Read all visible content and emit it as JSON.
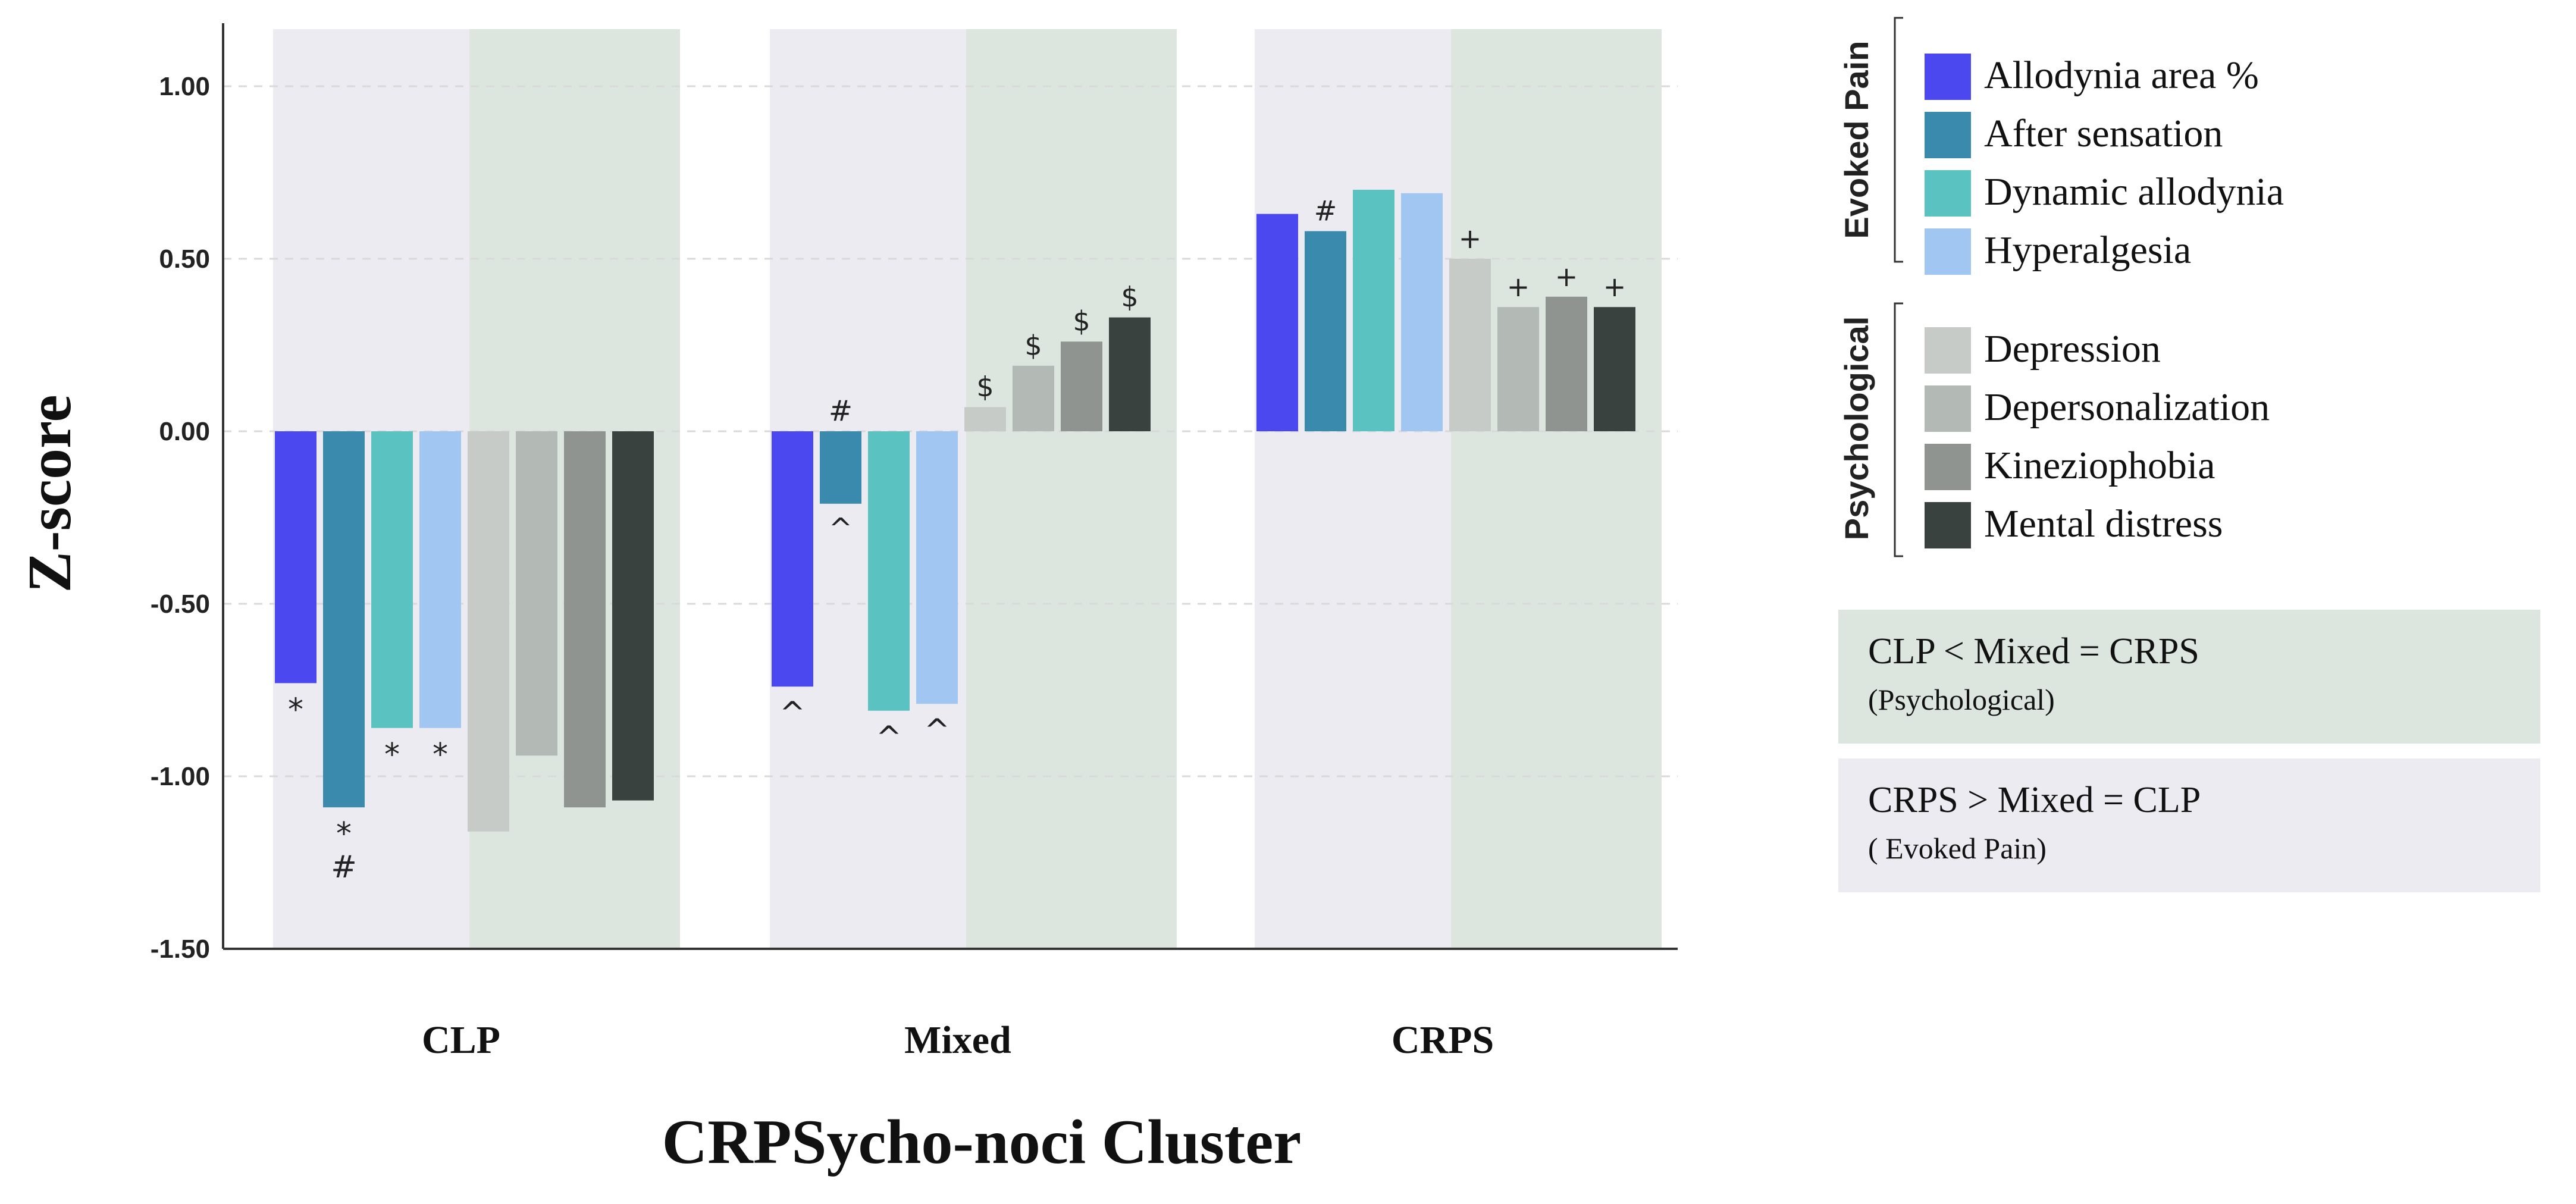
{
  "chart_data": {
    "type": "bar",
    "title": "",
    "xlabel": "CRPSycho-noci  Cluster",
    "ylabel": "Z-score",
    "ylim": [
      -1.5,
      1.2
    ],
    "yticks": [
      "1.00",
      "0.50",
      "0.00",
      "-0.50",
      "-1.00",
      "-1.50"
    ],
    "ytick_values": [
      1.0,
      0.5,
      0.0,
      -0.5,
      -1.0,
      -1.5
    ],
    "grid": "dashed horizontal",
    "categories": [
      "CLP",
      "Mixed",
      "CRPS"
    ],
    "series": [
      {
        "name": "Allodynia area %",
        "group": "Evoked Pain",
        "color": "#4B48F0",
        "values": [
          -0.73,
          -0.74,
          0.63
        ],
        "annotations": [
          "*",
          "^",
          ""
        ]
      },
      {
        "name": "After sensation",
        "group": "Evoked Pain",
        "color": "#3A8AAE",
        "values": [
          -1.09,
          -0.21,
          0.58
        ],
        "annotations": [
          "*\n#",
          "#\n^",
          "#"
        ]
      },
      {
        "name": "Dynamic allodynia",
        "group": "Evoked Pain",
        "color": "#5BC2C2",
        "values": [
          -0.86,
          -0.81,
          0.7
        ],
        "annotations": [
          "*",
          "^",
          ""
        ]
      },
      {
        "name": "Hyperalgesia",
        "group": "Evoked Pain",
        "color": "#A1C6F2",
        "values": [
          -0.86,
          -0.79,
          0.69
        ],
        "annotations": [
          "*",
          "^",
          ""
        ]
      },
      {
        "name": "Depression",
        "group": "Psychological",
        "color": "#C6CBC8",
        "values": [
          -1.16,
          0.07,
          0.5
        ],
        "annotations": [
          "",
          "$",
          "+"
        ]
      },
      {
        "name": "Depersonalization",
        "group": "Psychological",
        "color": "#B3B9B5",
        "values": [
          -0.94,
          0.19,
          0.36
        ],
        "annotations": [
          "",
          "$",
          "+"
        ]
      },
      {
        "name": "Kineziophobia",
        "group": "Psychological",
        "color": "#8F9490",
        "values": [
          -1.09,
          0.26,
          0.39
        ],
        "annotations": [
          "",
          "$",
          "+"
        ]
      },
      {
        "name": "Mental distress",
        "group": "Psychological",
        "color": "#3A423F",
        "values": [
          -1.07,
          0.33,
          0.36
        ],
        "annotations": [
          "",
          "$",
          "+"
        ]
      }
    ],
    "legend": {
      "placement": "right",
      "groups": [
        {
          "label": "Evoked Pain",
          "items": [
            "Allodynia area %",
            "After sensation",
            "Dynamic allodynia",
            "Hyperalgesia"
          ]
        },
        {
          "label": "Psychological",
          "items": [
            "Depression",
            "Depersonalization",
            "Kineziophobia",
            "Mental distress"
          ]
        }
      ]
    },
    "annotation_boxes": [
      {
        "line1": "CLP < Mixed = CRPS",
        "line2": "(Psychological)",
        "color": "#DCE6DF"
      },
      {
        "line1": "CRPS > Mixed = CLP",
        "line2": "( Evoked Pain)",
        "color": "#ECEBF2"
      }
    ],
    "region_colors": {
      "evoked": "#ECEBF2",
      "psychological": "#DCE6DF"
    }
  }
}
